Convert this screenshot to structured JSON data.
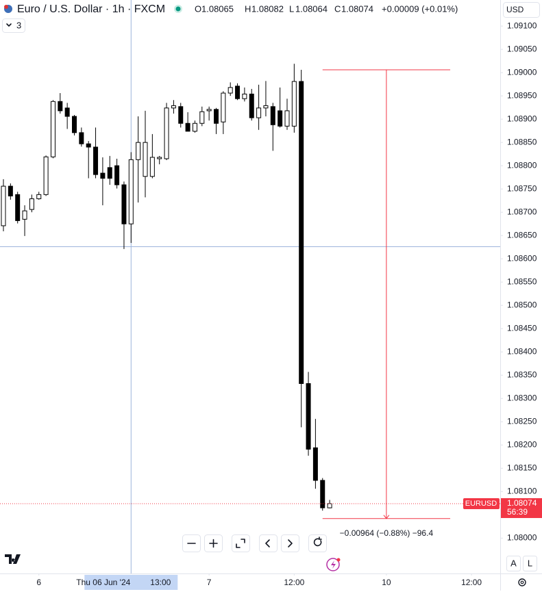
{
  "chart_data": {
    "type": "candlestick",
    "title": "Euro / U.S. Dollar · 1h · FXCM",
    "header": {
      "open_label": "O",
      "open": 1.08065,
      "high_label": "H",
      "high": 1.08082,
      "low_label": "L",
      "low": 1.08064,
      "close_label": "C",
      "close": 1.08074,
      "change": "+0.00009 (+0.01%)"
    },
    "indicators_count": 3,
    "currency": "USD",
    "symbol": "EURUSD",
    "countdown": "56:39",
    "up_color": "#ffffff",
    "down_color": "#000000",
    "last_price_color": "#f23645",
    "x": [
      "2024-06-05 19:00",
      "2024-06-05 20:00",
      "2024-06-05 21:00",
      "2024-06-05 22:00",
      "2024-06-05 23:00",
      "2024-06-06 00:00",
      "2024-06-06 01:00",
      "2024-06-06 02:00",
      "2024-06-06 03:00",
      "2024-06-06 04:00",
      "2024-06-06 05:00",
      "2024-06-06 06:00",
      "2024-06-06 07:00",
      "2024-06-06 08:00",
      "2024-06-06 09:00",
      "2024-06-06 10:00",
      "2024-06-06 11:00",
      "2024-06-06 12:00",
      "2024-06-06 13:00",
      "2024-06-06 14:00",
      "2024-06-06 15:00",
      "2024-06-06 16:00",
      "2024-06-06 17:00",
      "2024-06-06 18:00",
      "2024-06-06 19:00",
      "2024-06-06 20:00",
      "2024-06-06 21:00",
      "2024-06-06 22:00",
      "2024-06-06 23:00",
      "2024-06-07 00:00",
      "2024-06-07 01:00",
      "2024-06-07 02:00",
      "2024-06-07 03:00",
      "2024-06-07 04:00",
      "2024-06-07 05:00",
      "2024-06-07 06:00",
      "2024-06-07 07:00",
      "2024-06-07 08:00",
      "2024-06-07 09:00",
      "2024-06-07 10:00",
      "2024-06-07 11:00",
      "2024-06-07 12:00",
      "2024-06-07 13:00",
      "2024-06-07 14:00",
      "2024-06-07 15:00",
      "2024-06-07 16:00",
      "2024-06-07 17:00"
    ],
    "open": [
      1.08671,
      1.08756,
      1.08738,
      1.08685,
      1.08706,
      1.08729,
      1.08738,
      1.08819,
      1.08938,
      1.08924,
      1.08906,
      1.08871,
      1.08847,
      1.0884,
      1.08784,
      1.08796,
      1.088,
      1.08759,
      1.08675,
      1.08813,
      1.08777,
      1.08777,
      1.08815,
      1.08815,
      1.08924,
      1.08927,
      1.08891,
      1.08874,
      1.08891,
      1.08918,
      1.08921,
      1.08894,
      1.08956,
      1.08971,
      1.08944,
      1.08954,
      1.08903,
      1.08924,
      1.08927,
      1.08918,
      1.08885,
      1.08885,
      1.08981,
      1.08332,
      1.08194,
      1.08124,
      1.08065
    ],
    "high": [
      1.08771,
      1.08762,
      1.08744,
      1.08715,
      1.08738,
      1.08744,
      1.08822,
      1.08941,
      1.08956,
      1.08935,
      1.08909,
      1.08882,
      1.08853,
      1.08882,
      1.08818,
      1.08821,
      1.08815,
      1.08766,
      1.08829,
      1.08906,
      1.08918,
      1.08868,
      1.08821,
      1.08935,
      1.08941,
      1.08935,
      1.08915,
      1.08897,
      1.08927,
      1.08927,
      1.08924,
      1.0896,
      1.08979,
      1.08977,
      1.08968,
      1.08965,
      1.08974,
      1.08982,
      1.08935,
      1.08968,
      1.08944,
      1.09019,
      1.09006,
      1.08357,
      1.08256,
      1.08129,
      1.08082
    ],
    "low": [
      1.08659,
      1.08727,
      1.08676,
      1.08649,
      1.087,
      1.08727,
      1.08735,
      1.08816,
      1.08912,
      1.08879,
      1.08865,
      1.08841,
      1.08773,
      1.08773,
      1.08715,
      1.08759,
      1.08751,
      1.08621,
      1.08634,
      1.08721,
      1.08732,
      1.08773,
      1.08803,
      1.08812,
      1.08912,
      1.08882,
      1.08874,
      1.08871,
      1.08885,
      1.08897,
      1.08868,
      1.08868,
      1.0895,
      1.08941,
      1.08938,
      1.08897,
      1.08877,
      1.08906,
      1.08832,
      1.08882,
      1.08877,
      1.08871,
      1.08238,
      1.08177,
      1.08106,
      1.08059,
      1.08064
    ],
    "close": [
      1.08756,
      1.08735,
      1.08682,
      1.08703,
      1.08729,
      1.08738,
      1.08819,
      1.08938,
      1.08918,
      1.08906,
      1.08871,
      1.08847,
      1.0884,
      1.08781,
      1.08773,
      1.08773,
      1.08759,
      1.08675,
      1.08813,
      1.0885,
      1.0885,
      1.08818,
      1.08818,
      1.08924,
      1.08929,
      1.08891,
      1.08874,
      1.08891,
      1.08916,
      1.08921,
      1.08891,
      1.08956,
      1.08968,
      1.08944,
      1.08954,
      1.08903,
      1.08924,
      1.08929,
      1.08888,
      1.08885,
      1.08918,
      1.08981,
      1.08332,
      1.08191,
      1.08124,
      1.08065,
      1.08074
    ],
    "ylim": [
      1.07924,
      1.09156
    ],
    "yticks": [
      {
        "value": 1.091,
        "label": "1.09100"
      },
      {
        "value": 1.0905,
        "label": "1.09050"
      },
      {
        "value": 1.09,
        "label": "1.09000"
      },
      {
        "value": 1.0895,
        "label": "1.08950"
      },
      {
        "value": 1.089,
        "label": "1.08900"
      },
      {
        "value": 1.0885,
        "label": "1.08850"
      },
      {
        "value": 1.088,
        "label": "1.08800"
      },
      {
        "value": 1.0875,
        "label": "1.08750"
      },
      {
        "value": 1.087,
        "label": "1.08700"
      },
      {
        "value": 1.0865,
        "label": "1.08650"
      },
      {
        "value": 1.086,
        "label": "1.08600"
      },
      {
        "value": 1.0855,
        "label": "1.08550"
      },
      {
        "value": 1.085,
        "label": "1.08500"
      },
      {
        "value": 1.0845,
        "label": "1.08450"
      },
      {
        "value": 1.084,
        "label": "1.08400"
      },
      {
        "value": 1.0835,
        "label": "1.08350"
      },
      {
        "value": 1.083,
        "label": "1.08300"
      },
      {
        "value": 1.0825,
        "label": "1.08250"
      },
      {
        "value": 1.082,
        "label": "1.08200"
      },
      {
        "value": 1.0815,
        "label": "1.08150"
      },
      {
        "value": 1.081,
        "label": "1.08100"
      },
      {
        "value": 1.0805,
        "label": "1.08050"
      },
      {
        "value": 1.08,
        "label": "1.08000"
      }
    ],
    "xticks": [
      {
        "value": "2024-06-06 00:00",
        "label": "6"
      },
      {
        "value": "2024-06-07 00:00",
        "label": "7"
      },
      {
        "value": "2024-06-07 12:00",
        "label": "12:00"
      },
      {
        "value": "2024-06-10 00:00",
        "label": "10"
      },
      {
        "value": "2024-06-10 12:00",
        "label": "12:00"
      }
    ],
    "crosshair": {
      "x": "2024-06-06 13:00",
      "date_label": "Thu 06 Jun '24",
      "time_label": "13:00",
      "price": 1.08626
    },
    "measure": {
      "start": "2024-06-07 16:00",
      "end": "2024-06-10 09:00",
      "from": 1.09006,
      "to": 1.08042,
      "label": "−0.00964 (−0.88%) −96.4"
    },
    "scale_buttons": [
      "A",
      "L"
    ]
  }
}
